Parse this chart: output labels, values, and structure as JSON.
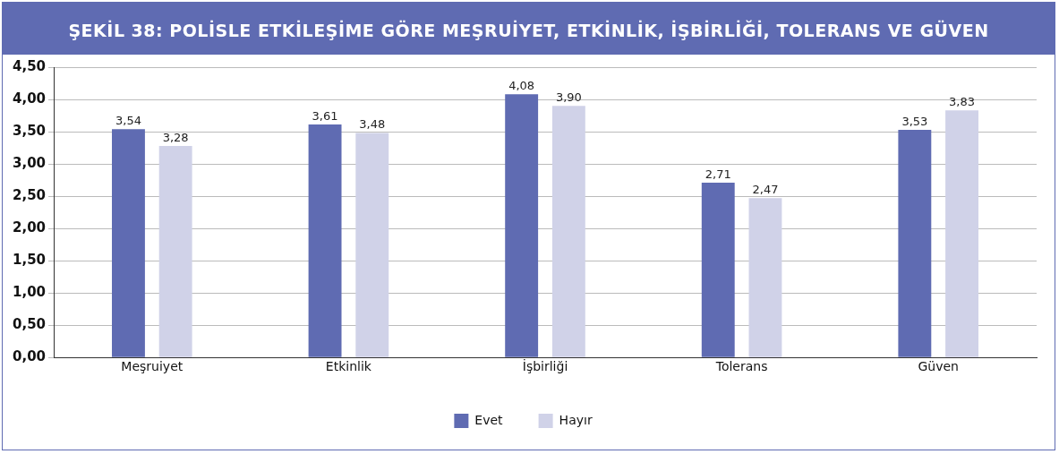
{
  "chart_data": {
    "type": "bar",
    "title": "ŞEKİL 38: POLİSLE ETKİLEŞİME GÖRE MEŞRUİYET, ETKİNLİK, İŞBİRLİĞİ, TOLERANS VE GÜVEN",
    "categories": [
      "Meşruiyet",
      "Etkinlik",
      "İşbirliği",
      "Tolerans",
      "Güven"
    ],
    "series": [
      {
        "name": "Evet",
        "color": "#5f6bb2",
        "values": [
          3.54,
          3.61,
          4.08,
          2.71,
          3.53
        ],
        "value_labels": [
          "3,54",
          "3,61",
          "4,08",
          "2,71",
          "3,53"
        ]
      },
      {
        "name": "Hayır",
        "color": "#d0d2e8",
        "values": [
          3.28,
          3.48,
          3.9,
          2.47,
          3.83
        ],
        "value_labels": [
          "3,28",
          "3,48",
          "3,90",
          "2,47",
          "3,83"
        ]
      }
    ],
    "ylim": [
      0,
      4.5
    ],
    "yticks": [
      {
        "value": 0,
        "label": "0,00"
      },
      {
        "value": 0.5,
        "label": "0,50"
      },
      {
        "value": 1,
        "label": "1,00"
      },
      {
        "value": 1.5,
        "label": "1,50"
      },
      {
        "value": 2,
        "label": "2,00"
      },
      {
        "value": 2.5,
        "label": "2,50"
      },
      {
        "value": 3,
        "label": "3,00"
      },
      {
        "value": 3.5,
        "label": "3,50"
      },
      {
        "value": 4,
        "label": "4,00"
      },
      {
        "value": 4.5,
        "label": "4,50"
      }
    ],
    "grid": "y",
    "legend": "bottom"
  }
}
